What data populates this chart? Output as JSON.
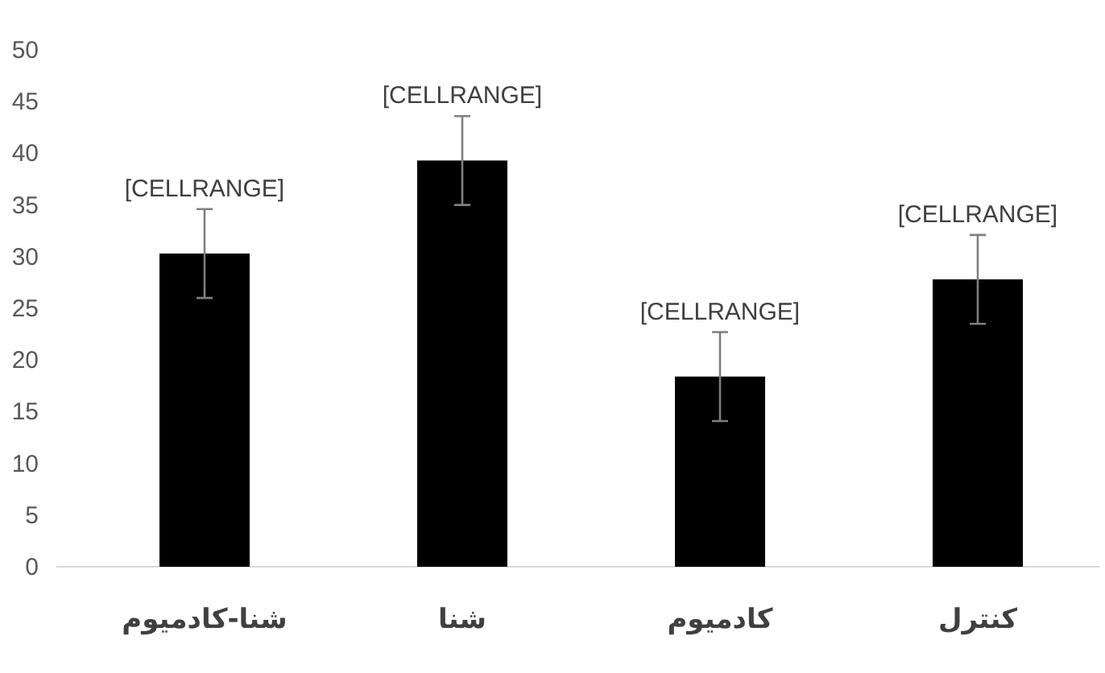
{
  "chart_data": {
    "type": "bar",
    "categories": [
      "شنا-کادمیوم",
      "شنا",
      "کادمیوم",
      "کنترل"
    ],
    "values": [
      30.3,
      39.3,
      18.4,
      27.8
    ],
    "errors": [
      4.3,
      4.3,
      4.3,
      4.3
    ],
    "value_labels": [
      "[CELLRANGE]",
      "[CELLRANGE]",
      "[CELLRANGE]",
      "[CELLRANGE]"
    ],
    "color": "#000000",
    "ylim": [
      0,
      50
    ],
    "yticks": [
      0,
      5,
      10,
      15,
      20,
      25,
      30,
      35,
      40,
      45,
      50
    ]
  }
}
